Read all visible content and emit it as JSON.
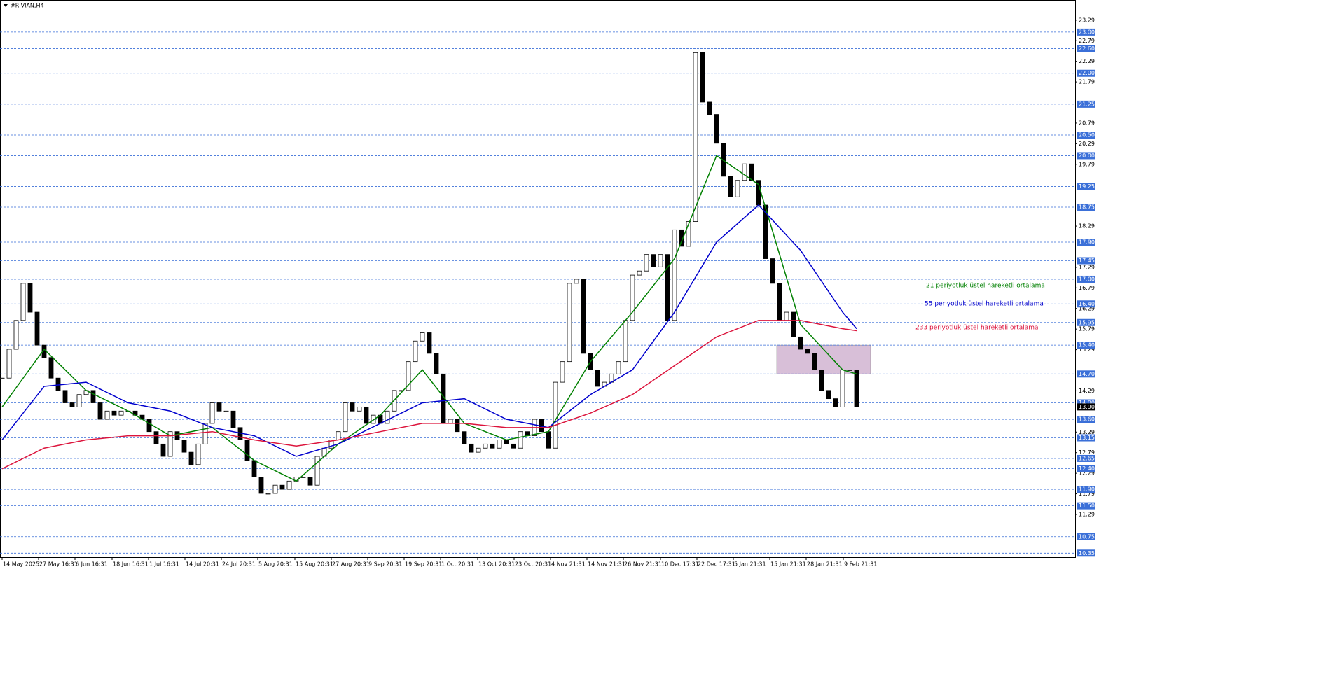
{
  "chart_data": {
    "type": "candlestick",
    "title": "#RIVIAN,H4",
    "ylim": [
      10.27,
      23.78
    ],
    "xlim": [
      -0.3,
      153.2
    ],
    "yticks": [
      23.29,
      22.79,
      22.29,
      21.79,
      20.79,
      20.29,
      19.79,
      18.29,
      17.29,
      16.79,
      16.29,
      15.79,
      15.29,
      14.29,
      13.29,
      12.79,
      12.29,
      11.79,
      11.29
    ],
    "xticks": [
      {
        "value": 0,
        "label": "14 May 2025"
      },
      {
        "value": 5.2,
        "label": "27 May 16:31"
      },
      {
        "value": 10.4,
        "label": "6 Jun 16:31"
      },
      {
        "value": 15.7,
        "label": "18 Jun 16:31"
      },
      {
        "value": 20.9,
        "label": "1 Jul 16:31"
      },
      {
        "value": 26.1,
        "label": "14 Jul 20:31"
      },
      {
        "value": 31.3,
        "label": "24 Jul 20:31"
      },
      {
        "value": 36.5,
        "label": "5 Aug 20:31"
      },
      {
        "value": 41.8,
        "label": "15 Aug 20:31"
      },
      {
        "value": 47.0,
        "label": "27 Aug 20:31"
      },
      {
        "value": 52.2,
        "label": "9 Sep 20:31"
      },
      {
        "value": 57.4,
        "label": "19 Sep 20:31"
      },
      {
        "value": 62.6,
        "label": "1 Oct 20:31"
      },
      {
        "value": 67.9,
        "label": "13 Oct 20:31"
      },
      {
        "value": 73.1,
        "label": "23 Oct 20:31"
      },
      {
        "value": 78.3,
        "label": "4 Nov 21:31"
      },
      {
        "value": 83.5,
        "label": "14 Nov 21:31"
      },
      {
        "value": 88.7,
        "label": "26 Nov 21:31"
      },
      {
        "value": 94.0,
        "label": "10 Dec 17:31"
      },
      {
        "value": 99.2,
        "label": "22 Dec 17:31"
      },
      {
        "value": 104.4,
        "label": "5 Jan 21:31"
      },
      {
        "value": 109.6,
        "label": "15 Jan 21:31"
      },
      {
        "value": 114.8,
        "label": "28 Jan 21:31"
      },
      {
        "value": 120.1,
        "label": "9 Feb 21:31"
      }
    ],
    "close": [
      14.6,
      15.3,
      16.0,
      16.9,
      16.2,
      15.4,
      15.1,
      14.6,
      14.3,
      14.0,
      13.9,
      14.2,
      14.3,
      14.0,
      13.6,
      13.8,
      13.7,
      13.8,
      13.8,
      13.7,
      13.6,
      13.3,
      13.0,
      12.7,
      13.3,
      13.1,
      12.8,
      12.5,
      13.0,
      13.5,
      14.0,
      13.8,
      13.8,
      13.4,
      13.1,
      12.6,
      12.2,
      11.8,
      11.8,
      12.0,
      11.9,
      12.1,
      12.2,
      12.2,
      12.0,
      12.7,
      12.9,
      13.1,
      13.3,
      14.0,
      13.8,
      13.9,
      13.5,
      13.7,
      13.5,
      13.8,
      14.3,
      14.3,
      15.0,
      15.5,
      15.7,
      15.2,
      14.7,
      13.5,
      13.6,
      13.3,
      13.0,
      12.8,
      12.9,
      13.0,
      12.9,
      13.1,
      13.0,
      12.9,
      13.3,
      13.2,
      13.6,
      13.3,
      12.9,
      14.5,
      15.0,
      16.9,
      17.0,
      15.2,
      14.8,
      14.4,
      14.5,
      14.7,
      15.0,
      16.0,
      17.1,
      17.2,
      17.6,
      17.3,
      17.6,
      16.0,
      18.2,
      17.8,
      18.4,
      22.5,
      21.3,
      21.0,
      20.3,
      19.5,
      19.0,
      19.4,
      19.8,
      19.4,
      18.8,
      17.5,
      16.9,
      16.0,
      16.2,
      15.6,
      15.3,
      15.2,
      14.8,
      14.3,
      14.1,
      13.9,
      14.8,
      14.8,
      13.9
    ],
    "series": [
      {
        "name": "21 periyotluk üstel hareketli ortalama",
        "color": "#008000",
        "x": [
          0,
          6,
          12,
          18,
          24,
          30,
          36,
          42,
          48,
          54,
          60,
          66,
          72,
          78,
          84,
          90,
          96,
          102,
          108,
          114,
          120,
          122
        ],
        "values": [
          13.9,
          15.3,
          14.3,
          13.8,
          13.2,
          13.4,
          12.6,
          12.1,
          13.0,
          13.7,
          14.8,
          13.5,
          13.1,
          13.3,
          15.0,
          16.2,
          17.5,
          20.0,
          19.3,
          15.9,
          14.8,
          14.7
        ]
      },
      {
        "name": "55 periyotluk üstel hareketli ortalama",
        "color": "#0000cd",
        "x": [
          0,
          6,
          12,
          18,
          24,
          30,
          36,
          42,
          48,
          54,
          60,
          66,
          72,
          78,
          84,
          90,
          96,
          102,
          108,
          114,
          120,
          122
        ],
        "values": [
          13.1,
          14.4,
          14.5,
          14.0,
          13.8,
          13.4,
          13.2,
          12.7,
          13.0,
          13.5,
          14.0,
          14.1,
          13.6,
          13.4,
          14.2,
          14.8,
          16.2,
          17.9,
          18.8,
          17.7,
          16.2,
          15.8
        ]
      },
      {
        "name": "233 periyotluk üstel hareketli ortalama",
        "color": "#dc143c",
        "x": [
          0,
          6,
          12,
          18,
          24,
          30,
          36,
          42,
          48,
          54,
          60,
          66,
          72,
          78,
          84,
          90,
          96,
          102,
          108,
          114,
          120,
          122
        ],
        "values": [
          12.4,
          12.9,
          13.1,
          13.2,
          13.2,
          13.3,
          13.1,
          12.95,
          13.1,
          13.3,
          13.5,
          13.5,
          13.4,
          13.4,
          13.75,
          14.2,
          14.9,
          15.6,
          16.0,
          16.0,
          15.8,
          15.75
        ]
      }
    ],
    "levels": [
      {
        "value": 23,
        "label": "23.00"
      },
      {
        "value": 22.6,
        "label": "22.60"
      },
      {
        "value": 22,
        "label": "22.00"
      },
      {
        "value": 21.25,
        "label": "21.25"
      },
      {
        "value": 20.5,
        "label": "20.50"
      },
      {
        "value": 20,
        "label": "20.00"
      },
      {
        "value": 19.25,
        "label": "19.25"
      },
      {
        "value": 18.75,
        "label": "18.75"
      },
      {
        "value": 17.9,
        "label": "17.90"
      },
      {
        "value": 17.45,
        "label": "17.45"
      },
      {
        "value": 17,
        "label": "17.00"
      },
      {
        "value": 16.4,
        "label": "16.40"
      },
      {
        "value": 15.95,
        "label": "15.95"
      },
      {
        "value": 15.4,
        "label": "15.40"
      },
      {
        "value": 14.7,
        "label": "14.70"
      },
      {
        "value": 14,
        "label": "14.00"
      },
      {
        "value": 13.6,
        "label": "13.60"
      },
      {
        "value": 13.15,
        "label": "13.15"
      },
      {
        "value": 12.65,
        "label": "12.65"
      },
      {
        "value": 12.4,
        "label": "12.40"
      },
      {
        "value": 11.9,
        "label": "11.90"
      },
      {
        "value": 11.5,
        "label": "11.50"
      },
      {
        "value": 10.75,
        "label": "10.75"
      },
      {
        "value": 10.35,
        "label": "10.35"
      }
    ],
    "level_color": "#3a6fd8",
    "current_price": {
      "value": 13.9,
      "label": "13.90"
    },
    "zone": {
      "x": [
        110.6,
        124
      ],
      "y": [
        14.7,
        15.4
      ],
      "color": "#d8bfd8"
    }
  }
}
